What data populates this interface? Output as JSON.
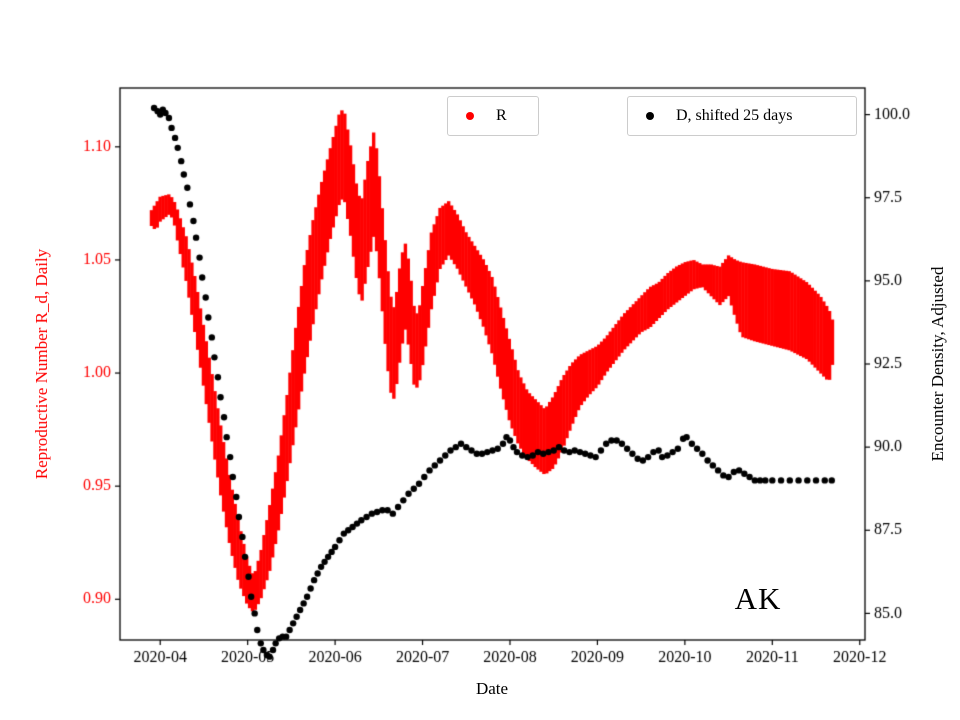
{
  "figure": {
    "background": "#ffffff",
    "annotation": "AK",
    "xlabel": "Date",
    "legend": [
      {
        "label": "R",
        "color": "#ff0000"
      },
      {
        "label": "D, shifted 25 days",
        "color": "#000000"
      }
    ]
  },
  "chart_data": {
    "type": "scatter",
    "title": "",
    "xlabel": "Date",
    "x_unit": "month of 2020 (numeric, 4 = 2020-04-01)",
    "x_range": [
      3.54,
      12.06
    ],
    "x_ticks": [
      {
        "value": 4,
        "label": "2020-04"
      },
      {
        "value": 5,
        "label": "2020-05"
      },
      {
        "value": 6,
        "label": "2020-06"
      },
      {
        "value": 7,
        "label": "2020-07"
      },
      {
        "value": 8,
        "label": "2020-08"
      },
      {
        "value": 9,
        "label": "2020-09"
      },
      {
        "value": 10,
        "label": "2020-10"
      },
      {
        "value": 11,
        "label": "2020-11"
      },
      {
        "value": 12,
        "label": "2020-12"
      }
    ],
    "grid": false,
    "legend_position": "upper center, two boxes inside axes",
    "y_left": {
      "label": "Reproductive Number R_d, Daily",
      "color": "#ff0000",
      "range": [
        0.882,
        1.126
      ],
      "ticks": [
        {
          "value": 0.9,
          "label": "0.90"
        },
        {
          "value": 0.95,
          "label": "0.95"
        },
        {
          "value": 1.0,
          "label": "1.00"
        },
        {
          "value": 1.05,
          "label": "1.05"
        },
        {
          "value": 1.1,
          "label": "1.10"
        }
      ]
    },
    "y_right": {
      "label": "Encounter Density, Adjusted",
      "color": "#000000",
      "range": [
        84.2,
        100.8
      ],
      "ticks": [
        {
          "value": 85.0,
          "label": "85.0"
        },
        {
          "value": 87.5,
          "label": "87.5"
        },
        {
          "value": 90.0,
          "label": "90.0"
        },
        {
          "value": 92.5,
          "label": "92.5"
        },
        {
          "value": 95.0,
          "label": "95.0"
        },
        {
          "value": 97.5,
          "label": "97.5"
        },
        {
          "value": 100.0,
          "label": "100.0"
        }
      ]
    },
    "series": [
      {
        "name": "R",
        "type": "band",
        "axis": "left",
        "color": "#ff0000",
        "x": [
          3.9,
          3.95,
          4.0,
          4.1,
          4.15,
          4.2,
          4.3,
          4.4,
          4.5,
          4.6,
          4.7,
          4.8,
          4.9,
          5.0,
          5.07,
          5.15,
          5.25,
          5.35,
          5.45,
          5.55,
          5.65,
          5.75,
          5.85,
          5.95,
          6.05,
          6.1,
          6.18,
          6.25,
          6.3,
          6.38,
          6.45,
          6.5,
          6.57,
          6.63,
          6.68,
          6.75,
          6.8,
          6.85,
          6.9,
          6.95,
          7.0,
          7.1,
          7.2,
          7.3,
          7.4,
          7.5,
          7.6,
          7.7,
          7.8,
          7.9,
          8.0,
          8.1,
          8.2,
          8.3,
          8.4,
          8.5,
          8.6,
          8.7,
          8.8,
          8.9,
          9.0,
          9.1,
          9.2,
          9.3,
          9.4,
          9.5,
          9.6,
          9.7,
          9.8,
          9.9,
          10.0,
          10.1,
          10.2,
          10.3,
          10.4,
          10.5,
          10.58,
          10.65,
          10.8,
          11.0,
          11.2,
          11.4,
          11.55,
          11.65,
          11.72
        ],
        "lo": [
          1.065,
          1.063,
          1.067,
          1.07,
          1.068,
          1.058,
          1.04,
          1.017,
          0.993,
          0.968,
          0.944,
          0.923,
          0.907,
          0.897,
          0.894,
          0.9,
          0.912,
          0.93,
          0.952,
          0.976,
          1.0,
          1.022,
          1.042,
          1.06,
          1.075,
          1.078,
          1.06,
          1.04,
          1.03,
          1.048,
          1.062,
          1.045,
          1.014,
          0.992,
          0.988,
          1.008,
          1.02,
          1.01,
          0.995,
          0.993,
          1.003,
          1.028,
          1.046,
          1.052,
          1.046,
          1.038,
          1.03,
          1.02,
          1.008,
          0.992,
          0.978,
          0.968,
          0.962,
          0.958,
          0.955,
          0.958,
          0.966,
          0.976,
          0.985,
          0.99,
          0.994,
          1.0,
          1.005,
          1.01,
          1.014,
          1.018,
          1.02,
          1.024,
          1.028,
          1.031,
          1.034,
          1.037,
          1.038,
          1.034,
          1.03,
          1.034,
          1.024,
          1.016,
          1.014,
          1.012,
          1.01,
          1.006,
          1.0,
          0.996,
          1.01
        ],
        "hi": [
          1.072,
          1.075,
          1.078,
          1.079,
          1.077,
          1.072,
          1.06,
          1.042,
          1.02,
          0.998,
          0.975,
          0.953,
          0.934,
          0.917,
          0.91,
          0.921,
          0.941,
          0.963,
          0.99,
          1.02,
          1.048,
          1.068,
          1.085,
          1.1,
          1.115,
          1.117,
          1.1,
          1.082,
          1.075,
          1.095,
          1.108,
          1.09,
          1.06,
          1.035,
          1.028,
          1.05,
          1.058,
          1.048,
          1.03,
          1.025,
          1.038,
          1.062,
          1.073,
          1.076,
          1.07,
          1.062,
          1.056,
          1.05,
          1.042,
          1.028,
          1.014,
          1.0,
          0.992,
          0.988,
          0.984,
          0.99,
          0.998,
          1.004,
          1.008,
          1.01,
          1.012,
          1.016,
          1.021,
          1.026,
          1.03,
          1.034,
          1.038,
          1.04,
          1.044,
          1.047,
          1.049,
          1.05,
          1.048,
          1.048,
          1.047,
          1.052,
          1.05,
          1.049,
          1.048,
          1.046,
          1.045,
          1.04,
          1.034,
          1.028,
          1.02
        ]
      },
      {
        "name": "D, shifted 25 days",
        "type": "scatter",
        "axis": "right",
        "color": "#000000",
        "x": [
          3.93,
          3.97,
          4.0,
          4.03,
          4.06,
          4.1,
          4.13,
          4.17,
          4.2,
          4.24,
          4.27,
          4.31,
          4.34,
          4.38,
          4.41,
          4.45,
          4.48,
          4.52,
          4.55,
          4.59,
          4.62,
          4.66,
          4.69,
          4.73,
          4.76,
          4.8,
          4.83,
          4.87,
          4.9,
          4.94,
          4.97,
          5.01,
          5.04,
          5.08,
          5.11,
          5.15,
          5.18,
          5.22,
          5.25,
          5.29,
          5.32,
          5.36,
          5.4,
          5.44,
          5.48,
          5.52,
          5.56,
          5.6,
          5.64,
          5.68,
          5.72,
          5.76,
          5.8,
          5.84,
          5.88,
          5.92,
          5.96,
          6.0,
          6.05,
          6.1,
          6.15,
          6.2,
          6.25,
          6.3,
          6.36,
          6.42,
          6.48,
          6.54,
          6.6,
          6.66,
          6.72,
          6.78,
          6.84,
          6.9,
          6.96,
          7.02,
          7.08,
          7.14,
          7.2,
          7.26,
          7.32,
          7.38,
          7.44,
          7.5,
          7.56,
          7.62,
          7.68,
          7.74,
          7.8,
          7.86,
          7.92,
          7.96,
          8.0,
          8.04,
          8.08,
          8.14,
          8.2,
          8.26,
          8.32,
          8.38,
          8.44,
          8.5,
          8.56,
          8.62,
          8.68,
          8.74,
          8.8,
          8.86,
          8.92,
          8.98,
          9.04,
          9.1,
          9.16,
          9.22,
          9.28,
          9.34,
          9.4,
          9.46,
          9.52,
          9.58,
          9.64,
          9.7,
          9.74,
          9.8,
          9.86,
          9.92,
          9.98,
          10.02,
          10.08,
          10.14,
          10.2,
          10.26,
          10.32,
          10.38,
          10.44,
          10.5,
          10.56,
          10.62,
          10.68,
          10.74,
          10.8,
          10.86,
          10.92,
          11.0,
          11.1,
          11.2,
          11.3,
          11.4,
          11.5,
          11.6,
          11.68
        ],
        "y": [
          100.2,
          100.1,
          100.0,
          100.15,
          100.05,
          99.9,
          99.6,
          99.3,
          99.0,
          98.6,
          98.2,
          97.8,
          97.3,
          96.8,
          96.3,
          95.7,
          95.1,
          94.5,
          93.9,
          93.3,
          92.7,
          92.1,
          91.5,
          90.9,
          90.3,
          89.7,
          89.1,
          88.5,
          87.9,
          87.3,
          86.7,
          86.1,
          85.5,
          85.0,
          84.5,
          84.1,
          83.9,
          83.75,
          83.7,
          83.9,
          84.1,
          84.25,
          84.3,
          84.3,
          84.5,
          84.7,
          84.9,
          85.1,
          85.3,
          85.5,
          85.75,
          86.0,
          86.2,
          86.4,
          86.55,
          86.7,
          86.85,
          87.0,
          87.2,
          87.4,
          87.5,
          87.6,
          87.7,
          87.8,
          87.9,
          88.0,
          88.05,
          88.1,
          88.1,
          88.0,
          88.2,
          88.4,
          88.6,
          88.75,
          88.9,
          89.1,
          89.3,
          89.45,
          89.6,
          89.75,
          89.9,
          90.0,
          90.1,
          90.0,
          89.9,
          89.8,
          89.8,
          89.85,
          89.9,
          89.95,
          90.1,
          90.3,
          90.2,
          90.0,
          89.85,
          89.75,
          89.7,
          89.75,
          89.85,
          89.8,
          89.85,
          89.9,
          90.0,
          89.9,
          89.85,
          89.9,
          89.85,
          89.8,
          89.75,
          89.7,
          89.9,
          90.1,
          90.2,
          90.2,
          90.1,
          89.95,
          89.8,
          89.65,
          89.6,
          89.7,
          89.85,
          89.9,
          89.7,
          89.75,
          89.85,
          89.95,
          90.25,
          90.3,
          90.1,
          89.95,
          89.8,
          89.6,
          89.45,
          89.3,
          89.15,
          89.1,
          89.25,
          89.3,
          89.2,
          89.1,
          89.0,
          89.0,
          89.0,
          89.0,
          89.0,
          89.0,
          89.0,
          89.0,
          89.0,
          89.0,
          89.0
        ]
      }
    ]
  }
}
